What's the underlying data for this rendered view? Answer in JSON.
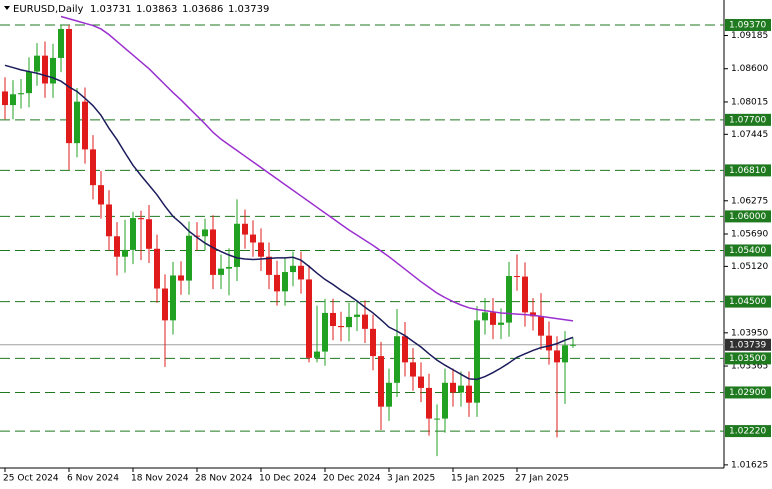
{
  "chart_data": {
    "type": "candlestick",
    "symbol": "EURUSD,Daily",
    "ohlc": [
      1.03731,
      1.03863,
      1.03686,
      1.03739
    ],
    "categories": [
      "25 Oct 2024",
      null,
      null,
      null,
      null,
      null,
      null,
      null,
      "6 Nov 2024",
      null,
      null,
      null,
      null,
      null,
      null,
      null,
      "18 Nov 2024",
      null,
      null,
      null,
      null,
      null,
      null,
      null,
      "28 Nov 2024",
      null,
      null,
      null,
      null,
      null,
      null,
      null,
      "10 Dec 2024",
      null,
      null,
      null,
      null,
      null,
      null,
      null,
      "20 Dec 2024",
      null,
      null,
      null,
      null,
      null,
      null,
      null,
      "3 Jan 2025",
      null,
      null,
      null,
      null,
      null,
      null,
      null,
      "15 Jan 2025",
      null,
      null,
      null,
      null,
      null,
      null,
      null,
      "27 Jan 2025",
      null,
      null,
      null,
      null,
      null,
      null,
      null
    ],
    "open": [
      1.082,
      1.0796,
      1.0815,
      1.0817,
      1.0855,
      1.0883,
      1.0834,
      1.0879,
      1.093,
      1.0729,
      1.0802,
      1.0718,
      1.0655,
      1.0621,
      1.0565,
      1.0529,
      1.0541,
      1.0597,
      1.0595,
      1.0543,
      1.0473,
      1.0417,
      1.0496,
      1.0487,
      1.0566,
      1.0565,
      1.0577,
      1.0497,
      1.0508,
      1.0511,
      1.0587,
      1.0568,
      1.0554,
      1.0529,
      1.0497,
      1.0468,
      1.0502,
      1.0513,
      1.0489,
      1.0351,
      1.0362,
      1.043,
      1.0407,
      1.0405,
      1.0423,
      1.0427,
      1.0402,
      1.0354,
      1.0265,
      1.0307,
      1.0389,
      1.0343,
      1.0318,
      1.0298,
      1.0244,
      1.0244,
      1.0307,
      1.029,
      1.0302,
      1.0272,
      1.0417,
      1.0431,
      1.0409,
      1.0413,
      1.0495,
      1.0494,
      1.0431,
      1.0424,
      1.039,
      1.0364,
      1.0343,
      1.03731
    ],
    "high": [
      1.0845,
      1.084,
      1.0842,
      1.088,
      1.0905,
      1.0908,
      1.0904,
      1.0937,
      1.0937,
      1.0826,
      1.0827,
      1.0743,
      1.068,
      1.0646,
      1.059,
      1.0594,
      1.0608,
      1.061,
      1.062,
      1.0568,
      1.0498,
      1.052,
      1.0521,
      1.0591,
      1.059,
      1.0596,
      1.0602,
      1.0533,
      1.0544,
      1.063,
      1.0612,
      1.0593,
      1.0579,
      1.0554,
      1.0522,
      1.0527,
      1.0538,
      1.0538,
      1.0514,
      1.0443,
      1.0455,
      1.0455,
      1.0432,
      1.0448,
      1.0452,
      1.0452,
      1.0427,
      1.0379,
      1.0332,
      1.0437,
      1.0414,
      1.0368,
      1.0343,
      1.0323,
      1.0269,
      1.0332,
      1.0332,
      1.0327,
      1.0327,
      1.0442,
      1.0456,
      1.0456,
      1.0438,
      1.052,
      1.0533,
      1.0519,
      1.0456,
      1.0465,
      1.0415,
      1.0389,
      1.0398,
      1.03863
    ],
    "low": [
      1.0771,
      1.0771,
      1.079,
      1.0792,
      1.083,
      1.0809,
      1.0809,
      1.0854,
      1.0682,
      1.0704,
      1.0693,
      1.063,
      1.0596,
      1.054,
      1.0496,
      1.0501,
      1.0516,
      1.0523,
      1.0518,
      1.0448,
      1.0335,
      1.0392,
      1.0462,
      1.0462,
      1.054,
      1.054,
      1.0472,
      1.0472,
      1.0461,
      1.0486,
      1.0543,
      1.0529,
      1.0504,
      1.0472,
      1.0443,
      1.0443,
      1.0477,
      1.0464,
      1.0343,
      1.0343,
      1.0337,
      1.0382,
      1.038,
      1.038,
      1.0398,
      1.0377,
      1.0329,
      1.0224,
      1.024,
      1.0282,
      1.0318,
      1.0293,
      1.0273,
      1.0214,
      1.0178,
      1.0219,
      1.0265,
      1.0265,
      1.0247,
      1.0247,
      1.0392,
      1.0384,
      1.0384,
      1.0388,
      1.0469,
      1.0406,
      1.0399,
      1.0365,
      1.0339,
      1.0211,
      1.027,
      1.03686
    ],
    "close": [
      1.0796,
      1.0815,
      1.0817,
      1.0855,
      1.0883,
      1.0834,
      1.0879,
      1.093,
      1.0729,
      1.0802,
      1.0718,
      1.0655,
      1.0621,
      1.0565,
      1.0529,
      1.0541,
      1.0597,
      1.0595,
      1.0543,
      1.0473,
      1.0417,
      1.0496,
      1.0487,
      1.0566,
      1.0565,
      1.0577,
      1.0497,
      1.0508,
      1.0511,
      1.0587,
      1.0568,
      1.0554,
      1.0529,
      1.0497,
      1.0468,
      1.0502,
      1.0513,
      1.0489,
      1.0351,
      1.0362,
      1.043,
      1.0407,
      1.0405,
      1.0423,
      1.0427,
      1.0402,
      1.0354,
      1.0265,
      1.0307,
      1.0389,
      1.0343,
      1.0318,
      1.0298,
      1.0244,
      1.0244,
      1.0307,
      1.029,
      1.0302,
      1.0272,
      1.0417,
      1.0431,
      1.0409,
      1.0413,
      1.0495,
      1.0494,
      1.0431,
      1.0424,
      1.039,
      1.0364,
      1.0343,
      1.0373,
      1.03739
    ],
    "up_color": "#22a022",
    "down_color": "#e01b1b",
    "series": [
      {
        "color": "#1c1c5c",
        "values": [
          1.0866,
          1.0862,
          1.0858,
          1.0855,
          1.0852,
          1.0848,
          1.0844,
          1.0838,
          1.0828,
          1.082,
          1.0808,
          1.0795,
          1.0778,
          1.0755,
          1.0735,
          1.0712,
          1.069,
          1.0672,
          1.0655,
          1.0638,
          1.0618,
          1.06,
          1.0588,
          1.0574,
          1.0563,
          1.0553,
          1.0545,
          1.0538,
          1.0532,
          1.0527,
          1.0525,
          1.0524,
          1.0525,
          1.0526,
          1.0527,
          1.0527,
          1.0528,
          1.0523,
          1.0512,
          1.05,
          1.0489,
          1.048,
          1.047,
          1.0461,
          1.0451,
          1.044,
          1.043,
          1.0418,
          1.0405,
          1.0398,
          1.039,
          1.038,
          1.037,
          1.0358,
          1.0347,
          1.0338,
          1.033,
          1.0322,
          1.0314,
          1.0313,
          1.0318,
          1.0325,
          1.0333,
          1.0342,
          1.0352,
          1.0358,
          1.0364,
          1.0369,
          1.0372,
          1.0376,
          1.0382,
          1.0387
        ]
      },
      {
        "color": "#9b30d0",
        "values": [
          null,
          null,
          null,
          null,
          null,
          null,
          null,
          1.0952,
          1.0948,
          1.0944,
          1.094,
          1.0936,
          1.093,
          1.092,
          1.0908,
          1.0896,
          1.0884,
          1.0872,
          1.086,
          1.0846,
          1.0832,
          1.0818,
          1.0805,
          1.0791,
          1.0777,
          1.0763,
          1.0748,
          1.0736,
          1.0726,
          1.0716,
          1.0706,
          1.0696,
          1.0686,
          1.0676,
          1.0666,
          1.0656,
          1.0646,
          1.0636,
          1.0626,
          1.0616,
          1.0606,
          1.0596,
          1.0586,
          1.0576,
          1.0567,
          1.0558,
          1.0549,
          1.0539,
          1.0529,
          1.0518,
          1.0507,
          1.0496,
          1.0485,
          1.0475,
          1.0465,
          1.0457,
          1.045,
          1.0444,
          1.0439,
          1.0436,
          1.0434,
          1.0432,
          1.043,
          1.0429,
          1.0428,
          1.0427,
          1.0426,
          1.0424,
          1.0422,
          1.042,
          1.0418,
          1.0416
        ]
      }
    ],
    "ylim": [
      1.0157,
      1.0981
    ],
    "yticks": [
      1.09185,
      {
        "value": 1.086,
        "label": "1.08600"
      },
      1.08015,
      1.07445,
      1.06275,
      {
        "value": 1.0569,
        "label": "1.05690"
      },
      {
        "value": 1.0512,
        "label": "1.05120"
      },
      {
        "value": 1.0395,
        "label": "1.03950"
      },
      1.03365,
      1.01625
    ],
    "levels": [
      {
        "value": 1.0937,
        "label": "1.09370"
      },
      {
        "value": 1.077,
        "label": "1.07700"
      },
      {
        "value": 1.0681,
        "label": "1.06810"
      },
      {
        "value": 1.06,
        "label": "1.06000"
      },
      {
        "value": 1.054,
        "label": "1.05400"
      },
      {
        "value": 1.045,
        "label": "1.04500"
      },
      {
        "value": 1.035,
        "label": "1.03500"
      },
      {
        "value": 1.029,
        "label": "1.02900"
      },
      {
        "value": 1.0222,
        "label": "1.02220"
      }
    ],
    "level_color": "#1f7a1f",
    "current_price": 1.03739
  }
}
